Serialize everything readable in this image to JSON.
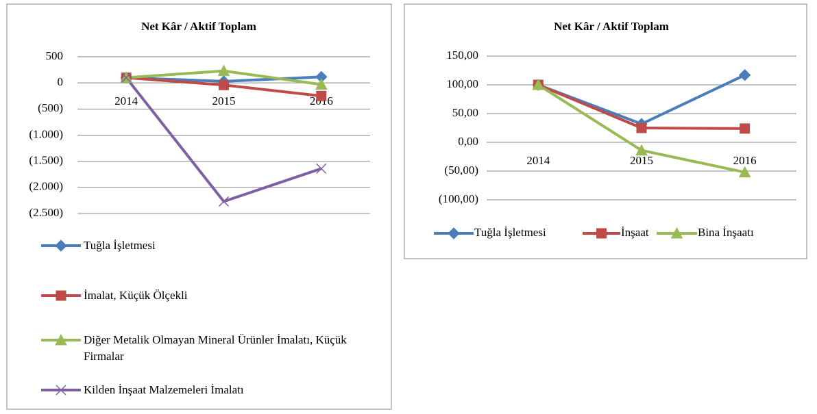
{
  "chart_data": [
    {
      "type": "line",
      "title": "Net Kâr / Aktif Toplam",
      "categories": [
        "2014",
        "2015",
        "2016"
      ],
      "series": [
        {
          "name": "Tuğla İşletmesi",
          "color": "#4a7ebb",
          "marker": "diamond",
          "values": [
            100,
            30,
            115
          ]
        },
        {
          "name": "İmalat, Küçük Ölçekli",
          "color": "#be4b48",
          "marker": "square",
          "values": [
            100,
            -40,
            -250
          ]
        },
        {
          "name": "Diğer Metalik Olmayan Mineral Ürünler İmalatı, Küçük Firmalar",
          "color": "#98b954",
          "marker": "triangle",
          "values": [
            100,
            230,
            -30
          ]
        },
        {
          "name": "Kilden İnşaat Malzemeleri İmalatı",
          "color": "#7d60a0",
          "marker": "x",
          "values": [
            100,
            -2270,
            -1640
          ]
        }
      ],
      "ylim": [
        -2500,
        500
      ],
      "yticks": [
        500,
        0,
        {
          "value": -500,
          "label": "(500)"
        },
        {
          "value": -1000,
          "label": "(1.000)"
        },
        {
          "value": -1500,
          "label": "(1.500)"
        },
        {
          "value": -2000,
          "label": "(2.000)"
        },
        {
          "value": -2500,
          "label": "(2.500)"
        }
      ],
      "grid": true,
      "legend": "bottom"
    },
    {
      "type": "line",
      "title": "Net Kâr / Aktif Toplam",
      "categories": [
        "2014",
        "2015",
        "2016"
      ],
      "series": [
        {
          "name": "Tuğla İşletmesi",
          "color": "#4a7ebb",
          "marker": "diamond",
          "values": [
            100,
            32,
            117
          ]
        },
        {
          "name": "İnşaat",
          "color": "#be4b48",
          "marker": "square",
          "values": [
            100,
            25,
            24
          ]
        },
        {
          "name": "Bina İnşaatı",
          "color": "#98b954",
          "marker": "triangle",
          "values": [
            100,
            -14,
            -52
          ]
        }
      ],
      "ylim": [
        -100,
        150
      ],
      "yticks": [
        {
          "value": 150,
          "label": "150,00"
        },
        {
          "value": 100,
          "label": "100,00"
        },
        {
          "value": 50,
          "label": "50,00"
        },
        {
          "value": 0,
          "label": "0,00"
        },
        {
          "value": -50,
          "label": "(50,00)"
        },
        {
          "value": -100,
          "label": "(100,00)"
        }
      ],
      "grid": true,
      "legend": "bottom"
    }
  ]
}
